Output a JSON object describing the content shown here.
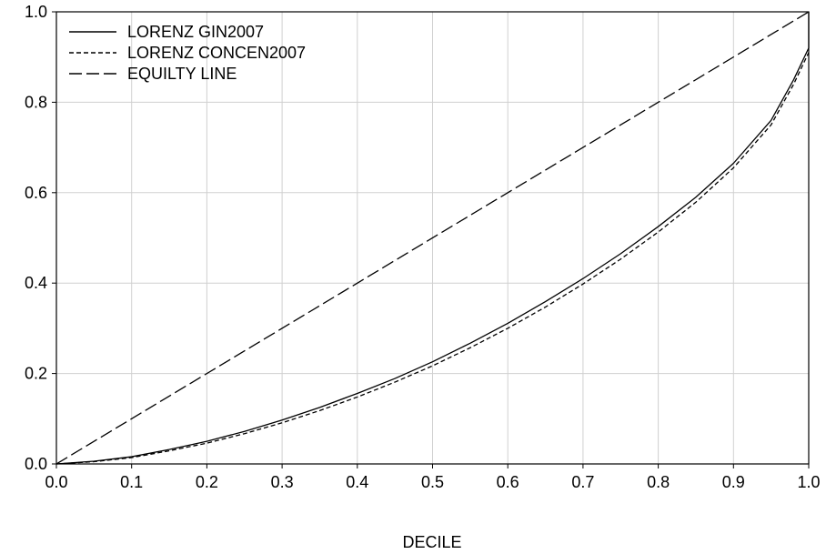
{
  "chart_data": {
    "type": "line",
    "title": "",
    "xlabel": "DECILE",
    "ylabel": "",
    "xlim": [
      0.0,
      1.0
    ],
    "ylim": [
      0.0,
      1.0
    ],
    "x_ticks": [
      0.0,
      0.1,
      0.2,
      0.3,
      0.4,
      0.5,
      0.6,
      0.7,
      0.8,
      0.9,
      1.0
    ],
    "y_ticks": [
      0.0,
      0.2,
      0.4,
      0.6,
      0.8,
      1.0
    ],
    "x_tick_labels": [
      "0.0",
      "0.1",
      "0.2",
      "0.3",
      "0.4",
      "0.5",
      "0.6",
      "0.7",
      "0.8",
      "0.9",
      "1.0"
    ],
    "y_tick_labels": [
      "0.0",
      "0.2",
      "0.4",
      "0.6",
      "0.8",
      "1.0"
    ],
    "grid": true,
    "legend_position": "top-left",
    "series": [
      {
        "name": "LORENZ  GIN2007",
        "style": "solid",
        "color": "#000000",
        "points": [
          [
            0.0,
            0.0
          ],
          [
            0.05,
            0.006
          ],
          [
            0.1,
            0.016
          ],
          [
            0.15,
            0.032
          ],
          [
            0.2,
            0.05
          ],
          [
            0.25,
            0.072
          ],
          [
            0.3,
            0.097
          ],
          [
            0.35,
            0.125
          ],
          [
            0.4,
            0.156
          ],
          [
            0.45,
            0.189
          ],
          [
            0.5,
            0.226
          ],
          [
            0.55,
            0.267
          ],
          [
            0.6,
            0.311
          ],
          [
            0.65,
            0.359
          ],
          [
            0.7,
            0.41
          ],
          [
            0.75,
            0.465
          ],
          [
            0.8,
            0.525
          ],
          [
            0.85,
            0.59
          ],
          [
            0.9,
            0.665
          ],
          [
            0.95,
            0.76
          ],
          [
            0.98,
            0.85
          ],
          [
            1.0,
            0.92
          ],
          [
            1.0,
            1.0
          ]
        ]
      },
      {
        "name": "LORENZ  CONCEN2007",
        "style": "dashed",
        "color": "#000000",
        "points": [
          [
            0.0,
            0.0
          ],
          [
            0.05,
            0.005
          ],
          [
            0.1,
            0.014
          ],
          [
            0.15,
            0.029
          ],
          [
            0.2,
            0.046
          ],
          [
            0.25,
            0.067
          ],
          [
            0.3,
            0.091
          ],
          [
            0.35,
            0.118
          ],
          [
            0.4,
            0.148
          ],
          [
            0.45,
            0.181
          ],
          [
            0.5,
            0.217
          ],
          [
            0.55,
            0.257
          ],
          [
            0.6,
            0.3
          ],
          [
            0.65,
            0.347
          ],
          [
            0.7,
            0.398
          ],
          [
            0.75,
            0.453
          ],
          [
            0.8,
            0.513
          ],
          [
            0.85,
            0.579
          ],
          [
            0.9,
            0.655
          ],
          [
            0.95,
            0.75
          ],
          [
            0.98,
            0.84
          ],
          [
            1.0,
            0.91
          ]
        ]
      },
      {
        "name": "EQUILTY  LINE",
        "style": "long-dash",
        "color": "#000000",
        "points": [
          [
            0.0,
            0.0
          ],
          [
            1.0,
            1.0
          ]
        ]
      }
    ]
  }
}
